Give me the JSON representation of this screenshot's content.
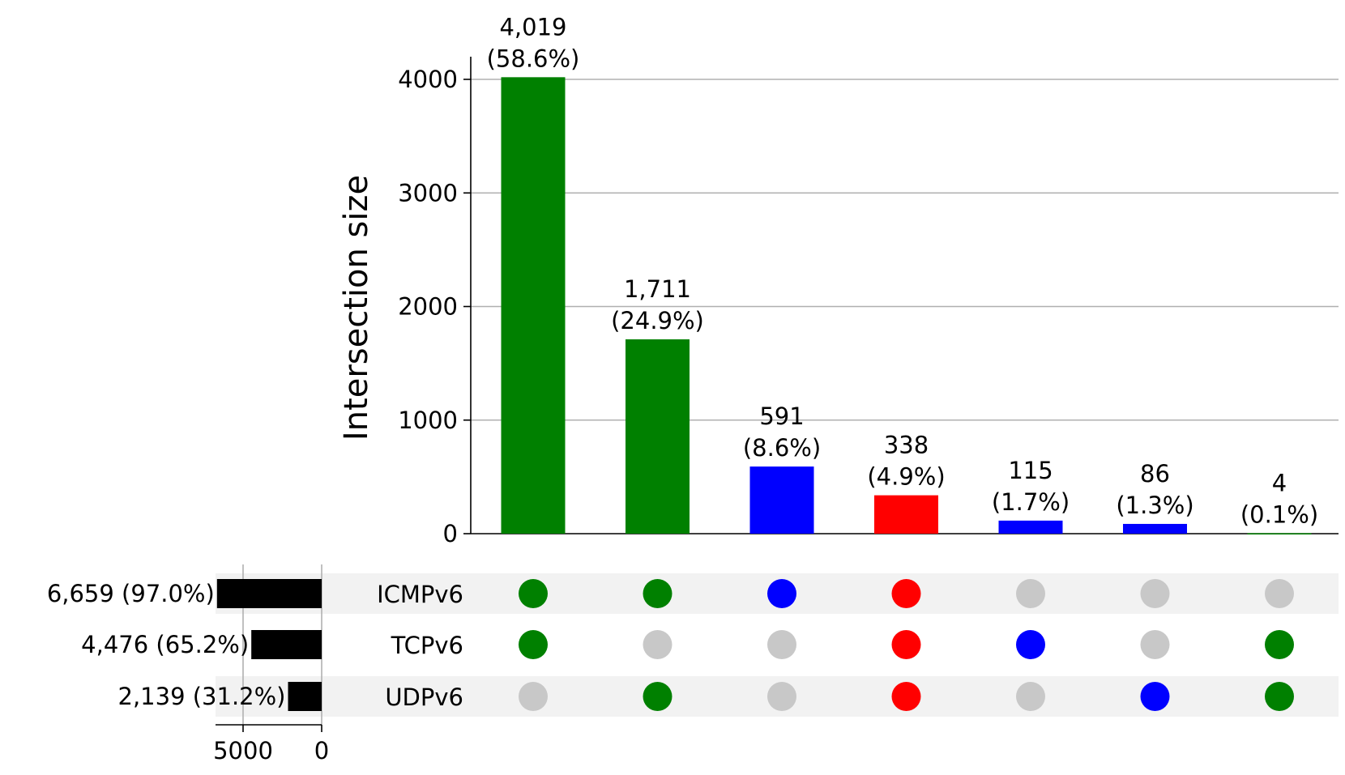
{
  "chart_data": {
    "type": "upset",
    "ylabel": "Intersection size",
    "ylim": [
      0,
      4200
    ],
    "yticks": [
      0,
      1000,
      2000,
      3000,
      4000
    ],
    "grid": true,
    "sets": [
      {
        "name": "ICMPv6",
        "size": 6659,
        "label": "6,659 (97.0%)"
      },
      {
        "name": "TCPv6",
        "size": 4476,
        "label": "4,476 (65.2%)"
      },
      {
        "name": "UDPv6",
        "size": 2139,
        "label": "2,139 (31.2%)"
      }
    ],
    "set_size_ticks": [
      5000,
      0
    ],
    "set_size_tick_labels": [
      "5000",
      "0"
    ],
    "intersections": [
      {
        "value": 4019,
        "count_label": "4,019",
        "pct_label": "(58.6%)",
        "color": "#008000",
        "members": [
          true,
          true,
          false
        ]
      },
      {
        "value": 1711,
        "count_label": "1,711",
        "pct_label": "(24.9%)",
        "color": "#008000",
        "members": [
          true,
          false,
          true
        ]
      },
      {
        "value": 591,
        "count_label": "591",
        "pct_label": "(8.6%)",
        "color": "#0000ff",
        "members": [
          true,
          false,
          false
        ]
      },
      {
        "value": 338,
        "count_label": "338",
        "pct_label": "(4.9%)",
        "color": "#ff0000",
        "members": [
          true,
          true,
          true
        ]
      },
      {
        "value": 115,
        "count_label": "115",
        "pct_label": "(1.7%)",
        "color": "#0000ff",
        "members": [
          false,
          true,
          false
        ]
      },
      {
        "value": 86,
        "count_label": "86",
        "pct_label": "(1.3%)",
        "color": "#0000ff",
        "members": [
          false,
          false,
          true
        ]
      },
      {
        "value": 4,
        "count_label": "4",
        "pct_label": "(0.1%)",
        "color": "#008000",
        "members": [
          false,
          true,
          true
        ]
      }
    ],
    "colors": {
      "inactive_dot": "#c8c8c8",
      "set_bar": "#000000",
      "row_shade": "#f2f2f2",
      "grid": "#b0b0b0"
    }
  }
}
